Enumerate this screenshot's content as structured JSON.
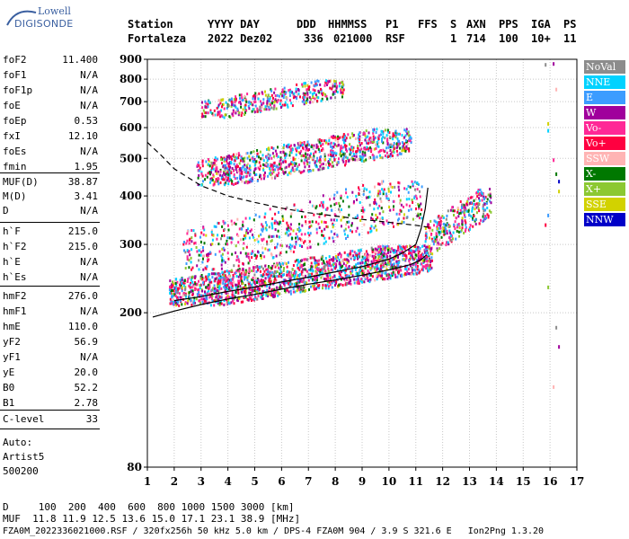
{
  "logo": {
    "line1": "Lowell",
    "line2": "DIGISONDE"
  },
  "header": {
    "labels": [
      "Station",
      "YYYY DAY",
      "DDD",
      "HHMMSS",
      "P1",
      "FFS",
      "S",
      "AXN",
      "PPS",
      "IGA",
      "PS"
    ],
    "values": [
      "Fortaleza",
      "2022 Dez02",
      "336",
      "021000",
      "RSF",
      "1",
      "714",
      "100",
      "10+",
      "11"
    ]
  },
  "params": [
    {
      "name": "foF2",
      "value": "11.400"
    },
    {
      "name": "foF1",
      "value": "N/A"
    },
    {
      "name": "foF1p",
      "value": "N/A"
    },
    {
      "name": "foE",
      "value": "N/A"
    },
    {
      "name": "foEp",
      "value": "0.53"
    },
    {
      "name": "fxI",
      "value": "12.10"
    },
    {
      "name": "foEs",
      "value": "N/A"
    },
    {
      "name": "fmin",
      "value": "1.95"
    },
    {
      "name": "MUF(D)",
      "value": "38.87"
    },
    {
      "name": "M(D)",
      "value": "3.41"
    },
    {
      "name": "D",
      "value": "N/A"
    },
    {
      "name": "h`F",
      "value": "215.0"
    },
    {
      "name": "h`F2",
      "value": "215.0"
    },
    {
      "name": "h`E",
      "value": "N/A"
    },
    {
      "name": "h`Es",
      "value": "N/A"
    },
    {
      "name": "hmF2",
      "value": "276.0"
    },
    {
      "name": "hmF1",
      "value": "N/A"
    },
    {
      "name": "hmE",
      "value": "110.0"
    },
    {
      "name": "yF2",
      "value": "56.9"
    },
    {
      "name": "yF1",
      "value": "N/A"
    },
    {
      "name": "yE",
      "value": "20.0"
    },
    {
      "name": "B0",
      "value": "52.2"
    },
    {
      "name": "B1",
      "value": "2.78"
    },
    {
      "name": "C-level",
      "value": "33"
    }
  ],
  "auto": {
    "line1": "Auto:",
    "line2": "Artist5",
    "line3": "500200"
  },
  "legend": [
    {
      "label": "NoVal",
      "color": "#8c8c8c"
    },
    {
      "label": "NNE",
      "color": "#00d2ff"
    },
    {
      "label": "E",
      "color": "#3c9cff"
    },
    {
      "label": "W",
      "color": "#a0009c"
    },
    {
      "label": "Vo-",
      "color": "#ff2896"
    },
    {
      "label": "Vo+",
      "color": "#ff0040"
    },
    {
      "label": "SSW",
      "color": "#ffb4b4"
    },
    {
      "label": "X-",
      "color": "#007800"
    },
    {
      "label": "X+",
      "color": "#8cc832"
    },
    {
      "label": "SSE",
      "color": "#d2d200"
    },
    {
      "label": "NNW",
      "color": "#0000c8"
    }
  ],
  "footer": {
    "line1": "D     100  200  400  600  800 1000 1500 3000 [km]",
    "line2": "MUF  11.8 11.9 12.5 13.6 15.0 17.1 23.1 38.9 [MHz]",
    "line3": "FZA0M_2022336021000.RSF / 320fx256h 50 kHz 5.0 km / DPS-4 FZA0M 904 / 3.9 S 321.6 E   Ion2Png 1.3.20"
  },
  "chart_data": {
    "type": "scatter",
    "xlim": [
      1,
      17
    ],
    "ylim": [
      80,
      900
    ],
    "x_ticks": [
      "1",
      "2",
      "3",
      "4",
      "5",
      "6",
      "7",
      "8",
      "9",
      "10",
      "11",
      "12",
      "13",
      "14",
      "15",
      "16",
      "17"
    ],
    "y_ticks": [
      "80",
      "200",
      "300",
      "400",
      "500",
      "600",
      "700",
      "800",
      "900"
    ],
    "y_tick_values": [
      80,
      200,
      300,
      400,
      500,
      600,
      700,
      800,
      900
    ],
    "y_scale": "log",
    "grid": true,
    "clusters": [
      {
        "x": [
          1.8,
          11.6
        ],
        "y": [
          210,
          300
        ],
        "density": 1900
      },
      {
        "x": [
          2.3,
          11.2
        ],
        "y": [
          260,
          440
        ],
        "density": 650
      },
      {
        "x": [
          2.8,
          10.8
        ],
        "y": [
          430,
          600
        ],
        "density": 1000
      },
      {
        "x": [
          3.0,
          8.3
        ],
        "y": [
          640,
          800
        ],
        "density": 420
      },
      {
        "x": [
          11.3,
          13.8
        ],
        "y": [
          290,
          420
        ],
        "density": 320
      }
    ],
    "traces": [
      {
        "style": "solid",
        "x": [
          1.2,
          2,
          3,
          4,
          5,
          6,
          7,
          8,
          9,
          10,
          10.8,
          11.2,
          11.4
        ],
        "y": [
          195,
          202,
          210,
          217,
          223,
          230,
          237,
          243,
          250,
          258,
          266,
          274,
          282
        ]
      },
      {
        "style": "solid",
        "x": [
          2,
          3,
          4,
          5,
          6,
          7,
          8,
          9,
          10,
          10.5,
          11,
          11.2,
          11.35,
          11.45
        ],
        "y": [
          215,
          220,
          227,
          233,
          240,
          247,
          255,
          263,
          275,
          285,
          300,
          330,
          370,
          420
        ]
      },
      {
        "style": "dashed",
        "x": [
          1,
          1.5,
          2,
          3,
          4,
          5,
          6,
          7,
          8,
          9,
          10,
          11,
          11.5
        ],
        "y": [
          550,
          510,
          470,
          425,
          400,
          385,
          372,
          362,
          355,
          348,
          342,
          336,
          332
        ]
      }
    ],
    "edge_marks": [
      {
        "x": 15.8,
        "y": 880
      },
      {
        "x": 16.1,
        "y": 885
      },
      {
        "x": 16.2,
        "y": 760
      },
      {
        "x": 15.9,
        "y": 620
      },
      {
        "x": 15.9,
        "y": 595
      },
      {
        "x": 16.1,
        "y": 500
      },
      {
        "x": 16.2,
        "y": 460
      },
      {
        "x": 16.3,
        "y": 440
      },
      {
        "x": 15.9,
        "y": 360
      },
      {
        "x": 15.8,
        "y": 340
      },
      {
        "x": 15.9,
        "y": 235
      },
      {
        "x": 16.2,
        "y": 185
      },
      {
        "x": 16.3,
        "y": 165
      },
      {
        "x": 16.1,
        "y": 130
      },
      {
        "x": 16.3,
        "y": 415
      }
    ]
  }
}
